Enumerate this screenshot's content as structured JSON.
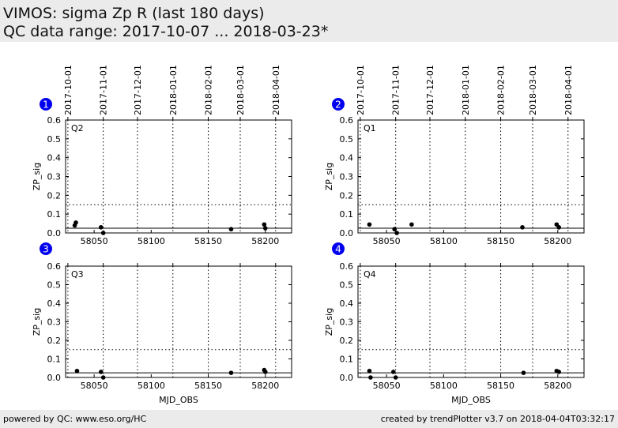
{
  "header": {
    "title": "VIMOS: sigma Zp R (last 180 days)",
    "subtitle": "QC data range: 2017-10-07 ... 2018-03-23*"
  },
  "footer": {
    "left": "powered by QC: www.eso.org/HC",
    "right": "created by trendPlotter v3.7 on 2018-04-04T03:32:17"
  },
  "colors": {
    "badge": "#0000ee",
    "points": "#000000",
    "reference_line": "#000000",
    "grid": "#000000"
  },
  "chart_data": [
    {
      "type": "scatter",
      "panel_number": "1",
      "panel_label": "Q2",
      "ylabel": "ZP_sig",
      "xlabel": "",
      "xlim": [
        58025,
        58223
      ],
      "ylim": [
        0,
        0.6
      ],
      "yticks": [
        "0.0",
        "0.1",
        "0.2",
        "0.3",
        "0.4",
        "0.5",
        "0.6"
      ],
      "xticks": [
        58050,
        58100,
        58150,
        58200
      ],
      "xtick_labels": [
        "58050",
        "58100",
        "58150",
        "58200"
      ],
      "date_ticks": [
        {
          "mjd": 58027,
          "label": "2017-10-01"
        },
        {
          "mjd": 58058,
          "label": "2017-11-01"
        },
        {
          "mjd": 58088,
          "label": "2017-12-01"
        },
        {
          "mjd": 58119,
          "label": "2018-01-01"
        },
        {
          "mjd": 58150,
          "label": "2018-02-01"
        },
        {
          "mjd": 58178,
          "label": "2018-03-01"
        },
        {
          "mjd": 58209,
          "label": "2018-04-01"
        }
      ],
      "show_date_labels": true,
      "reference_line": 0.025,
      "threshold_line": 0.15,
      "points": [
        {
          "x": 58033,
          "y": 0.04
        },
        {
          "x": 58034,
          "y": 0.055
        },
        {
          "x": 58056,
          "y": 0.03
        },
        {
          "x": 58058,
          "y": 0.0
        },
        {
          "x": 58170,
          "y": 0.02
        },
        {
          "x": 58199,
          "y": 0.045
        },
        {
          "x": 58200,
          "y": 0.025
        }
      ]
    },
    {
      "type": "scatter",
      "panel_number": "2",
      "panel_label": "Q1",
      "ylabel": "ZP_sig",
      "xlabel": "",
      "xlim": [
        58025,
        58223
      ],
      "ylim": [
        0,
        0.6
      ],
      "yticks": [
        "0.0",
        "0.1",
        "0.2",
        "0.3",
        "0.4",
        "0.5",
        "0.6"
      ],
      "xticks": [
        58050,
        58100,
        58150,
        58200
      ],
      "xtick_labels": [
        "58050",
        "58100",
        "58150",
        "58200"
      ],
      "date_ticks": [
        {
          "mjd": 58027,
          "label": "2017-10-01"
        },
        {
          "mjd": 58058,
          "label": "2017-11-01"
        },
        {
          "mjd": 58088,
          "label": "2017-12-01"
        },
        {
          "mjd": 58119,
          "label": "2018-01-01"
        },
        {
          "mjd": 58150,
          "label": "2018-02-01"
        },
        {
          "mjd": 58178,
          "label": "2018-03-01"
        },
        {
          "mjd": 58209,
          "label": "2018-04-01"
        }
      ],
      "show_date_labels": true,
      "reference_line": 0.025,
      "threshold_line": 0.15,
      "points": [
        {
          "x": 58035,
          "y": 0.045
        },
        {
          "x": 58057,
          "y": 0.02
        },
        {
          "x": 58059,
          "y": 0.0
        },
        {
          "x": 58072,
          "y": 0.045
        },
        {
          "x": 58169,
          "y": 0.03
        },
        {
          "x": 58199,
          "y": 0.045
        },
        {
          "x": 58201,
          "y": 0.03
        }
      ]
    },
    {
      "type": "scatter",
      "panel_number": "3",
      "panel_label": "Q3",
      "ylabel": "ZP_sig",
      "xlabel": "MJD_OBS",
      "xlim": [
        58025,
        58223
      ],
      "ylim": [
        0,
        0.6
      ],
      "yticks": [
        "0.0",
        "0.1",
        "0.2",
        "0.3",
        "0.4",
        "0.5",
        "0.6"
      ],
      "xticks": [
        58050,
        58100,
        58150,
        58200
      ],
      "xtick_labels": [
        "58050",
        "58100",
        "58150",
        "58200"
      ],
      "date_ticks": [
        {
          "mjd": 58027,
          "label": "2017-10-01"
        },
        {
          "mjd": 58058,
          "label": "2017-11-01"
        },
        {
          "mjd": 58088,
          "label": "2017-12-01"
        },
        {
          "mjd": 58119,
          "label": "2018-01-01"
        },
        {
          "mjd": 58150,
          "label": "2018-02-01"
        },
        {
          "mjd": 58178,
          "label": "2018-03-01"
        },
        {
          "mjd": 58209,
          "label": "2018-04-01"
        }
      ],
      "show_date_labels": false,
      "reference_line": 0.025,
      "threshold_line": 0.15,
      "points": [
        {
          "x": 58035,
          "y": 0.035
        },
        {
          "x": 58056,
          "y": 0.03
        },
        {
          "x": 58058,
          "y": 0.0
        },
        {
          "x": 58170,
          "y": 0.025
        },
        {
          "x": 58199,
          "y": 0.04
        },
        {
          "x": 58200,
          "y": 0.03
        }
      ]
    },
    {
      "type": "scatter",
      "panel_number": "4",
      "panel_label": "Q4",
      "ylabel": "ZP_sig",
      "xlabel": "MJD_OBS",
      "xlim": [
        58025,
        58223
      ],
      "ylim": [
        0,
        0.6
      ],
      "yticks": [
        "0.0",
        "0.1",
        "0.2",
        "0.3",
        "0.4",
        "0.5",
        "0.6"
      ],
      "xticks": [
        58050,
        58100,
        58150,
        58200
      ],
      "xtick_labels": [
        "58050",
        "58100",
        "58150",
        "58200"
      ],
      "date_ticks": [
        {
          "mjd": 58027,
          "label": "2017-10-01"
        },
        {
          "mjd": 58058,
          "label": "2017-11-01"
        },
        {
          "mjd": 58088,
          "label": "2017-12-01"
        },
        {
          "mjd": 58119,
          "label": "2018-01-01"
        },
        {
          "mjd": 58150,
          "label": "2018-02-01"
        },
        {
          "mjd": 58178,
          "label": "2018-03-01"
        },
        {
          "mjd": 58209,
          "label": "2018-04-01"
        }
      ],
      "show_date_labels": false,
      "reference_line": 0.025,
      "threshold_line": 0.15,
      "points": [
        {
          "x": 58035,
          "y": 0.035
        },
        {
          "x": 58036,
          "y": 0.0
        },
        {
          "x": 58056,
          "y": 0.03
        },
        {
          "x": 58058,
          "y": 0.0
        },
        {
          "x": 58170,
          "y": 0.025
        },
        {
          "x": 58199,
          "y": 0.035
        },
        {
          "x": 58201,
          "y": 0.03
        }
      ]
    }
  ]
}
